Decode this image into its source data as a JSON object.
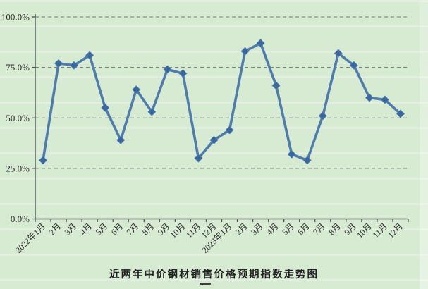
{
  "chart_data": {
    "type": "line",
    "title": "近两年中价钢材销售价格预期指数走势图",
    "xlabel": "",
    "ylabel": "",
    "categories": [
      "2022年1月",
      "2月",
      "3月",
      "4月",
      "5月",
      "6月",
      "7月",
      "8月",
      "9月",
      "10月",
      "11月",
      "12月",
      "2023年1月",
      "2月",
      "3月",
      "4月",
      "5月",
      "6月",
      "7月",
      "8月",
      "9月",
      "10月",
      "11月",
      "12月"
    ],
    "values": [
      29,
      77,
      76,
      81,
      55,
      39,
      64,
      53,
      74,
      72,
      30,
      39,
      44,
      83,
      87,
      66,
      32,
      29,
      51,
      82,
      76,
      60,
      59,
      52
    ],
    "ylim": [
      0,
      100
    ],
    "yticks": [
      0,
      25,
      50,
      75,
      100
    ],
    "ytick_labels": [
      "0.0%",
      "25.0%",
      "50.0%",
      "75.0%",
      "100.0%"
    ],
    "grid": "horizontal-dashed",
    "legend": "none",
    "marker": "diamond",
    "colors": {
      "background": "#d7ebd3",
      "line": "#4f7cad",
      "marker_fill": "#3a689e",
      "gridline": "#59635b",
      "axis": "#4c5550",
      "tick_text": "#2b2b2b",
      "title_text": "#222222"
    }
  }
}
